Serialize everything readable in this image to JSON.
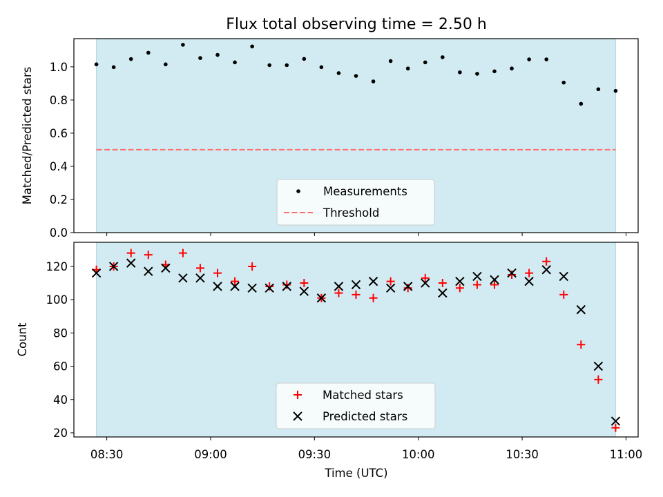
{
  "chart_data": {
    "title": "Flux total observing time = 2.50 h",
    "xlabel": "Time (UTC)",
    "x_ticks": [
      "08:30",
      "09:00",
      "09:30",
      "10:00",
      "10:30",
      "11:00"
    ],
    "x_tick_minutes": [
      510,
      540,
      570,
      600,
      630,
      660
    ],
    "x_range_minutes": [
      500.5,
      663.5
    ],
    "observing_window_minutes": [
      507,
      657
    ],
    "shade_color": "#add8e6",
    "panels": [
      {
        "type": "scatter",
        "ylabel": "Matched/Predicted stars",
        "ylim": [
          0,
          1.17
        ],
        "y_ticks": [
          0.0,
          0.2,
          0.4,
          0.6,
          0.8,
          1.0
        ],
        "y_tick_labels": [
          "0.0",
          "0.2",
          "0.4",
          "0.6",
          "0.8",
          "1.0"
        ],
        "legend_position": "lower-center",
        "series": [
          {
            "name": "Measurements",
            "marker": "dot",
            "color": "#000000",
            "x": [
              507,
              512,
              517,
              522,
              527,
              532,
              537,
              542,
              547,
              552,
              557,
              562,
              567,
              572,
              577,
              582,
              587,
              592,
              597,
              602,
              607,
              612,
              617,
              622,
              627,
              632,
              637,
              642,
              647,
              652,
              657
            ],
            "y": [
              1.015,
              0.998,
              1.047,
              1.085,
              1.015,
              1.133,
              1.053,
              1.072,
              1.027,
              1.123,
              1.01,
              1.01,
              1.048,
              0.998,
              0.962,
              0.945,
              0.912,
              1.035,
              0.99,
              1.027,
              1.058,
              0.967,
              0.958,
              0.973,
              0.99,
              1.045,
              1.045,
              0.905,
              0.777,
              0.865,
              0.855
            ]
          }
        ],
        "threshold": {
          "name": "Threshold",
          "value": 0.5,
          "color": "#ff7070"
        }
      },
      {
        "type": "scatter",
        "ylabel": "Count",
        "ylim": [
          17.5,
          134.5
        ],
        "y_ticks": [
          20,
          40,
          60,
          80,
          100,
          120
        ],
        "y_tick_labels": [
          "20",
          "40",
          "60",
          "80",
          "100",
          "120"
        ],
        "legend_position": "lower-center",
        "series": [
          {
            "name": "Matched stars",
            "marker": "plus",
            "color": "#ff0000",
            "x": [
              507,
              512,
              517,
              522,
              527,
              532,
              537,
              542,
              547,
              552,
              557,
              562,
              567,
              572,
              577,
              582,
              587,
              592,
              597,
              602,
              607,
              612,
              617,
              622,
              627,
              632,
              637,
              642,
              647,
              652,
              657
            ],
            "y": [
              118,
              120,
              128,
              127,
              121,
              128,
              119,
              116,
              111,
              120,
              108,
              109,
              110,
              101,
              104,
              103,
              101,
              111,
              107,
              113,
              110,
              107,
              109,
              109,
              115,
              116,
              123,
              103,
              73,
              52,
              23
            ]
          },
          {
            "name": "Predicted stars",
            "marker": "x",
            "color": "#000000",
            "x": [
              507,
              512,
              517,
              522,
              527,
              532,
              537,
              542,
              547,
              552,
              557,
              562,
              567,
              572,
              577,
              582,
              587,
              592,
              597,
              602,
              607,
              612,
              617,
              622,
              627,
              632,
              637,
              642,
              647,
              652,
              657
            ],
            "y": [
              116,
              120,
              122,
              117,
              119,
              113,
              113,
              108,
              108,
              107,
              107,
              108,
              105,
              101,
              108,
              109,
              111,
              107,
              108,
              110,
              104,
              111,
              114,
              112,
              116,
              111,
              118,
              114,
              94,
              60,
              27
            ]
          }
        ]
      }
    ]
  }
}
